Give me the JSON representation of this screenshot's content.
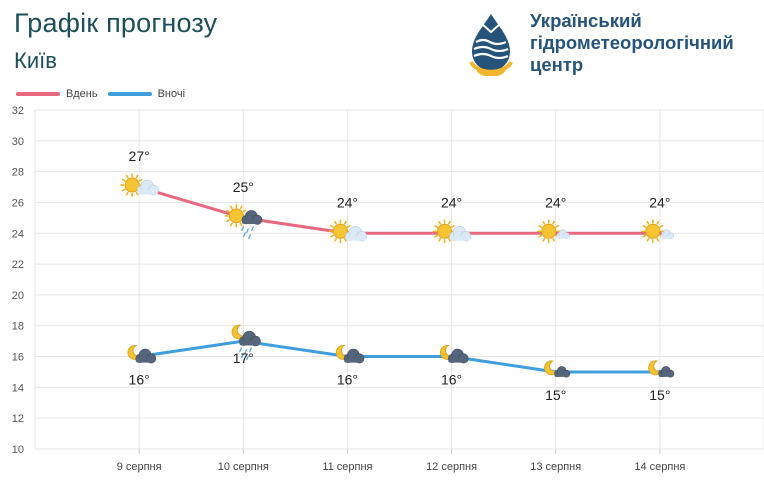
{
  "header": {
    "title": "Графік прогнозу",
    "city": "Київ"
  },
  "org": {
    "name_line1": "Український",
    "name_line2": "гідрометеорологічний",
    "name_line3": "центр",
    "logo_icon": "water-drop-logo-icon",
    "colors": {
      "primary": "#26537a",
      "accent": "#f2b62c"
    }
  },
  "chart_data": {
    "type": "line",
    "categories": [
      "9 серпня",
      "10 серпня",
      "11 серпня",
      "12 серпня",
      "13 серпня",
      "14 серпня"
    ],
    "ylim": [
      10,
      32
    ],
    "yticks": [
      10,
      12,
      14,
      16,
      18,
      20,
      22,
      24,
      26,
      28,
      30,
      32
    ],
    "grid": true,
    "legend_position": "top-left",
    "series": [
      {
        "name": "Вдень",
        "color": "#e8687f",
        "values": [
          27,
          25,
          24,
          24,
          24,
          24
        ],
        "labels": [
          "27°",
          "25°",
          "24°",
          "24°",
          "24°",
          "24°"
        ],
        "label_position": "above",
        "icons": [
          "sun-cloud-icon",
          "sun-cloud-rain-icon",
          "sun-cloud-icon",
          "sun-cloud-icon",
          "sun-small-cloud-icon",
          "sun-small-cloud-icon"
        ]
      },
      {
        "name": "Вночі",
        "color": "#3f9fdc",
        "values": [
          16,
          17,
          16,
          16,
          15,
          15
        ],
        "labels": [
          "16°",
          "17°",
          "16°",
          "16°",
          "15°",
          "15°"
        ],
        "label_position": "below",
        "icons": [
          "moon-cloud-icon",
          "moon-cloud-rain-icon",
          "moon-cloud-icon",
          "moon-cloud-icon",
          "moon-small-cloud-icon",
          "moon-small-cloud-icon"
        ]
      }
    ]
  }
}
